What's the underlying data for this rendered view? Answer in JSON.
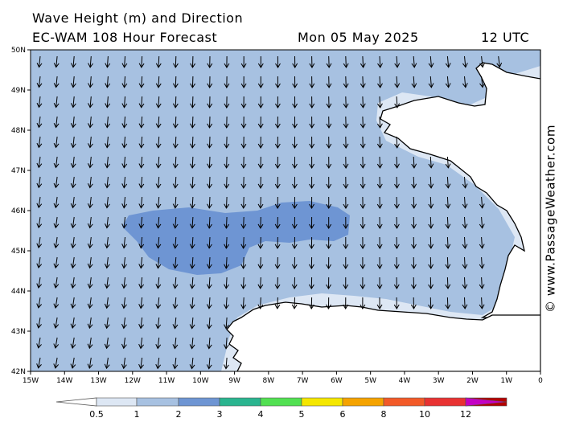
{
  "header": {
    "title": "Wave Height (m) and Direction",
    "model": "EC-WAM 108 Hour Forecast",
    "date": "Mon 05 May 2025",
    "time": "12 UTC"
  },
  "copyright": "© www.PassageWeather.com",
  "axes": {
    "lat_labels": [
      "50N",
      "49N",
      "48N",
      "47N",
      "46N",
      "45N",
      "44N",
      "43N",
      "42N"
    ],
    "lon_labels": [
      "15W",
      "14W",
      "13W",
      "12W",
      "11W",
      "10W",
      "9W",
      "8W",
      "7W",
      "6W",
      "5W",
      "4W",
      "3W",
      "2W",
      "1W",
      "0"
    ]
  },
  "colors": {
    "sea_0_5_1": "#dde7f4",
    "sea_1_2": "#a7c1e1",
    "sea_2_3": "#6e95d3",
    "land": "#ffffff",
    "coast": "#000000",
    "arrow": "#000000"
  },
  "wave_direction": "toward SSW (from NNE)",
  "legend": {
    "labels": [
      "0.5",
      "1",
      "2",
      "3",
      "4",
      "5",
      "6",
      "8",
      "10",
      "12"
    ],
    "colors": [
      "#dde7f4",
      "#a7c1e1",
      "#6e95d3",
      "#2ab48f",
      "#52e052",
      "#f5e700",
      "#f5a300",
      "#f25a28",
      "#e83232",
      "#b40000",
      "#c400c4"
    ]
  }
}
